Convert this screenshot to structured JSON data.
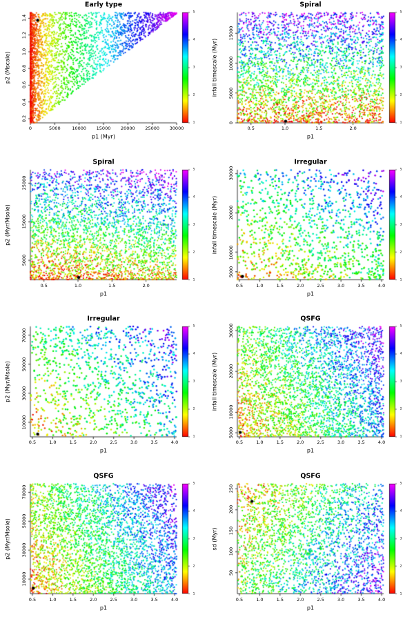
{
  "figure": {
    "background": "#ffffff",
    "description": "Grid of eight rainbow-coloured scatter plots of model parameters for different galaxy types, each with a vertical rainbow colour bar on the right and a single black highlighted point."
  },
  "chart_data": {
    "type": "scatter",
    "layout": {
      "rows": 4,
      "cols": 2
    },
    "colormap": {
      "name": "rainbow",
      "stops": [
        "#ff0000",
        "#ffff00",
        "#00ff00",
        "#00ffff",
        "#0000ff",
        "#ff00ff"
      ],
      "tick_labels": [
        "1",
        "2",
        "3",
        "4",
        "5"
      ]
    },
    "panels": [
      {
        "title": "Early type",
        "xlabel": "p1 (Myr)",
        "ylabel": "p2 (Mscale)",
        "xlim": [
          0,
          30000
        ],
        "ylim": [
          0.15,
          1.47
        ],
        "xticks": [
          "0",
          "5000",
          "10000",
          "15000",
          "20000",
          "25000",
          "30000"
        ],
        "yticks": [
          "0.2",
          "0.4",
          "0.6",
          "0.8",
          "1.0",
          "1.2",
          "1.4"
        ],
        "n_points": 3000,
        "point_size": 1.1,
        "distribution": "wedge",
        "y_bias": 1,
        "color_model": {
          "base": 0,
          "wx": 1,
          "wy": 0,
          "winvy": 0,
          "noise": 0.05,
          "gamma": 0.75
        },
        "highlight_point": {
          "x": 0.05,
          "y": 0.93
        }
      },
      {
        "title": "Spiral",
        "xlabel": "p1",
        "ylabel": "infall timescale (Myr)",
        "xlim": [
          0.3,
          2.45
        ],
        "ylim": [
          0,
          18500
        ],
        "xticks": [
          "0.5",
          "1.0",
          "1.5",
          "2.0"
        ],
        "yticks": [
          "0",
          "5000",
          "10000",
          "15000"
        ],
        "n_points": 3200,
        "point_size": 1.1,
        "distribution": "uniform",
        "y_bias": 1.25,
        "color_model": {
          "base": 0.07,
          "wx": 0,
          "wy": 0.85,
          "winvy": 0,
          "noise": 0.24,
          "gamma": 1
        },
        "highlight_point": {
          "x": 0.33,
          "y": 0.015
        }
      },
      {
        "title": "Spiral",
        "xlabel": "p1",
        "ylabel": "p2 (Myr/Msole)",
        "xlim": [
          0.3,
          2.45
        ],
        "ylim": [
          0,
          28500
        ],
        "xticks": [
          "0.5",
          "1.0",
          "1.5",
          "2.0"
        ],
        "yticks": [
          "5000",
          "15000",
          "25000"
        ],
        "n_points": 3200,
        "point_size": 1.1,
        "distribution": "uniform",
        "y_bias": 1.3,
        "color_model": {
          "base": 0.05,
          "wx": 0.15,
          "wy": 0.75,
          "winvy": 0,
          "noise": 0.2,
          "gamma": 1
        },
        "highlight_point": {
          "x": 0.33,
          "y": 0.02
        }
      },
      {
        "title": "Irregular",
        "xlabel": "p1",
        "ylabel": "infall timescale (Myr)",
        "xlim": [
          0.45,
          4.05
        ],
        "ylim": [
          3000,
          31000
        ],
        "xticks": [
          "0.5",
          "1.0",
          "1.5",
          "2.0",
          "2.5",
          "3.0",
          "3.5",
          "4.0"
        ],
        "yticks": [
          "5000",
          "10000",
          "20000",
          "30000"
        ],
        "n_points": 1200,
        "point_size": 1.3,
        "distribution": "uniform",
        "y_bias": 1.15,
        "color_model": {
          "base": 0.1,
          "wx": 0.32,
          "wy": 0.45,
          "winvy": 0,
          "noise": 0.18,
          "gamma": 1
        },
        "highlight_point": {
          "x": 0.035,
          "y": 0.03
        }
      },
      {
        "title": "Irregular",
        "xlabel": "p1",
        "ylabel": "p2 (Myr/Msole)",
        "xlim": [
          0.45,
          4.05
        ],
        "ylim": [
          0,
          76000
        ],
        "xticks": [
          "0.5",
          "1.0",
          "1.5",
          "2.0",
          "2.5",
          "3.0",
          "3.5",
          "4.0"
        ],
        "yticks": [
          "10000",
          "30000",
          "50000",
          "70000"
        ],
        "n_points": 1100,
        "point_size": 1.3,
        "distribution": "uniform",
        "y_bias": 1,
        "color_model": {
          "base": 0.12,
          "wx": 0.45,
          "wy": 0.3,
          "winvy": 0,
          "noise": 0.18,
          "gamma": 1
        },
        "highlight_point": {
          "x": 0.05,
          "y": 0.025
        }
      },
      {
        "title": "QSFG",
        "xlabel": "p1",
        "ylabel": "infall timescale (Myr)",
        "xlim": [
          0.45,
          4.05
        ],
        "ylim": [
          4000,
          31000
        ],
        "xticks": [
          "0.5",
          "1.0",
          "1.5",
          "2.0",
          "2.5",
          "3.0",
          "3.5",
          "4.0"
        ],
        "yticks": [
          "5000",
          "10000",
          "20000",
          "30000"
        ],
        "n_points": 3600,
        "point_size": 1.1,
        "distribution": "uniform",
        "y_bias": 1.1,
        "color_model": {
          "base": 0.1,
          "wx": 0.55,
          "wy": 0.25,
          "winvy": 0,
          "noise": 0.18,
          "gamma": 1
        },
        "highlight_point": {
          "x": 0.02,
          "y": 0.04
        }
      },
      {
        "title": "QSFG",
        "xlabel": "p1",
        "ylabel": "p2 (Myr/Msole)",
        "xlim": [
          0.45,
          4.05
        ],
        "ylim": [
          0,
          76000
        ],
        "xticks": [
          "0.5",
          "1.0",
          "1.5",
          "2.0",
          "2.5",
          "3.0",
          "3.5",
          "4.0"
        ],
        "yticks": [
          "10000",
          "30000",
          "50000",
          "70000"
        ],
        "n_points": 3600,
        "point_size": 1.1,
        "distribution": "uniform",
        "y_bias": 1.05,
        "color_model": {
          "base": 0.08,
          "wx": 0.6,
          "wy": 0.22,
          "winvy": 0,
          "noise": 0.16,
          "gamma": 1
        },
        "highlight_point": {
          "x": 0.02,
          "y": 0.05
        }
      },
      {
        "title": "QSFG",
        "xlabel": "p1",
        "ylabel": "sd (Myr)",
        "xlim": [
          0.45,
          4.05
        ],
        "ylim": [
          0,
          262
        ],
        "xticks": [
          "0.5",
          "1.0",
          "1.5",
          "2.0",
          "2.5",
          "3.0",
          "3.5",
          "4.0"
        ],
        "yticks": [
          "50",
          "100",
          "150",
          "200",
          "250"
        ],
        "n_points": 2800,
        "point_size": 1.1,
        "distribution": "uniform",
        "y_bias": 1,
        "color_model": {
          "base": 0.1,
          "wx": 0.55,
          "wy": 0,
          "winvy": 0.25,
          "noise": 0.2,
          "gamma": 1
        },
        "highlight_point": {
          "x": 0.1,
          "y": 0.84
        }
      }
    ]
  }
}
